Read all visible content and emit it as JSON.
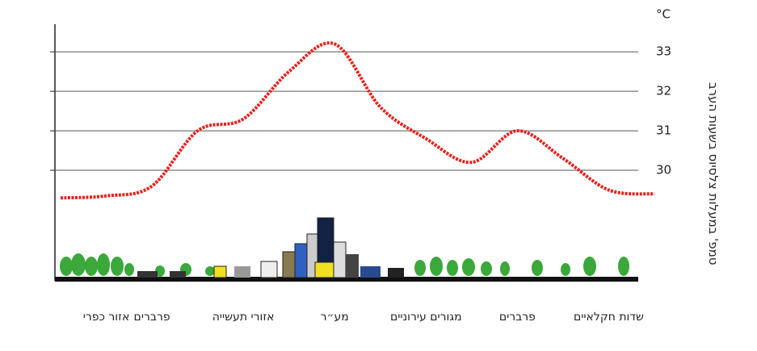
{
  "chart_data": {
    "type": "line",
    "y_unit": "°C",
    "y_title": "טמפ' במעלות צלסיוס בשעות הערב",
    "categories": [
      null,
      "אזור כפרי",
      "פרברים",
      null,
      "אזורי תעשייה",
      null,
      "מע״ר",
      null,
      "מגורים עירוניים",
      null,
      "פרברים",
      null,
      "שדות חקלאיים",
      null
    ],
    "values": [
      29.3,
      29.35,
      29.6,
      31.0,
      31.3,
      32.5,
      33.2,
      31.6,
      30.8,
      30.2,
      31.0,
      30.3,
      29.5,
      29.4
    ],
    "color": "#e8201c",
    "ylim": [
      26.3,
      33.7
    ],
    "yticks": [
      30,
      31,
      32,
      33
    ],
    "grid": true
  }
}
